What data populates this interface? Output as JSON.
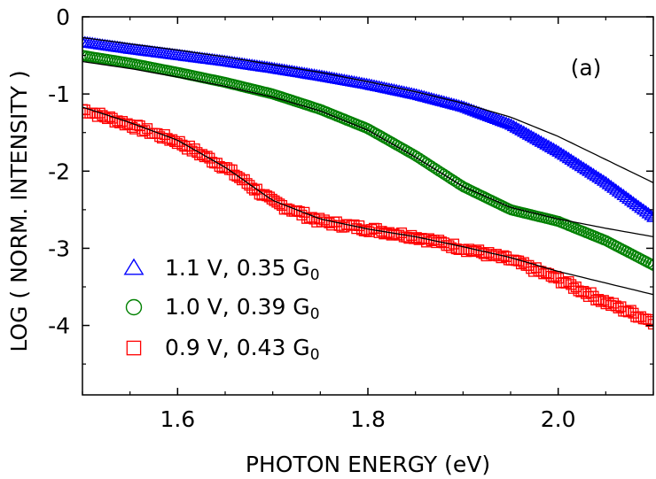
{
  "chart_data": {
    "type": "scatter",
    "title": "",
    "panel_label": "(a)",
    "xlabel": "PHOTON ENERGY (eV)",
    "ylabel": "LOG ( NORM. INTENSITY )",
    "xlim": [
      1.5,
      2.1
    ],
    "ylim": [
      -4.9,
      0.0
    ],
    "x_ticks": [
      1.6,
      1.8,
      2.0
    ],
    "x_tick_labels": [
      "1.6",
      "1.8",
      "2.0"
    ],
    "y_ticks": [
      0,
      -1,
      -2,
      -3,
      -4
    ],
    "y_tick_labels": [
      "0",
      "-1",
      "-2",
      "-3",
      "-4"
    ],
    "grid": false,
    "legend_position": "bottom-left",
    "series": [
      {
        "name": "1.1 V, 0.35 G",
        "subscript": "0",
        "marker": "triangle",
        "color": "#0000ff",
        "x": [
          1.5,
          1.55,
          1.6,
          1.65,
          1.7,
          1.75,
          1.8,
          1.85,
          1.9,
          1.95,
          2.0,
          2.05,
          2.1
        ],
        "y": [
          -0.33,
          -0.42,
          -0.5,
          -0.58,
          -0.67,
          -0.77,
          -0.88,
          -1.01,
          -1.17,
          -1.4,
          -1.75,
          -2.15,
          -2.6
        ],
        "fit_x": [
          1.5,
          1.55,
          1.6,
          1.65,
          1.7,
          1.75,
          1.8,
          1.85,
          1.9,
          1.95,
          2.0,
          2.05,
          2.1
        ],
        "fit_y": [
          -0.27,
          -0.35,
          -0.43,
          -0.52,
          -0.62,
          -0.72,
          -0.84,
          -0.97,
          -1.12,
          -1.3,
          -1.55,
          -1.85,
          -2.15
        ]
      },
      {
        "name": "1.0 V, 0.39 G",
        "subscript": "0",
        "marker": "circle",
        "color": "#008000",
        "x": [
          1.5,
          1.55,
          1.6,
          1.65,
          1.7,
          1.75,
          1.8,
          1.85,
          1.9,
          1.95,
          2.0,
          2.05,
          2.1
        ],
        "y": [
          -0.5,
          -0.6,
          -0.72,
          -0.85,
          -1.0,
          -1.2,
          -1.45,
          -1.8,
          -2.2,
          -2.5,
          -2.65,
          -2.9,
          -3.22
        ],
        "fit_x": [
          1.5,
          1.55,
          1.6,
          1.65,
          1.7,
          1.75,
          1.8,
          1.85,
          1.9,
          1.95,
          2.0,
          2.05,
          2.1
        ],
        "fit_y": [
          -0.58,
          -0.67,
          -0.78,
          -0.9,
          -1.04,
          -1.22,
          -1.47,
          -1.82,
          -2.2,
          -2.47,
          -2.62,
          -2.74,
          -2.85
        ]
      },
      {
        "name": "0.9 V, 0.43 G",
        "subscript": "0",
        "marker": "square",
        "color": "#ff0000",
        "x": [
          1.5,
          1.55,
          1.6,
          1.65,
          1.7,
          1.75,
          1.8,
          1.85,
          1.9,
          1.95,
          2.0,
          2.05,
          2.1
        ],
        "y": [
          -1.2,
          -1.4,
          -1.62,
          -1.95,
          -2.4,
          -2.65,
          -2.75,
          -2.85,
          -3.0,
          -3.15,
          -3.4,
          -3.7,
          -3.95
        ],
        "fit_x": [
          1.5,
          1.55,
          1.6,
          1.65,
          1.7,
          1.75,
          1.8,
          1.85,
          1.9,
          1.95,
          2.0,
          2.05,
          2.1
        ],
        "fit_y": [
          -1.17,
          -1.37,
          -1.6,
          -1.95,
          -2.38,
          -2.62,
          -2.75,
          -2.85,
          -2.98,
          -3.12,
          -3.3,
          -3.45,
          -3.6
        ]
      }
    ]
  }
}
